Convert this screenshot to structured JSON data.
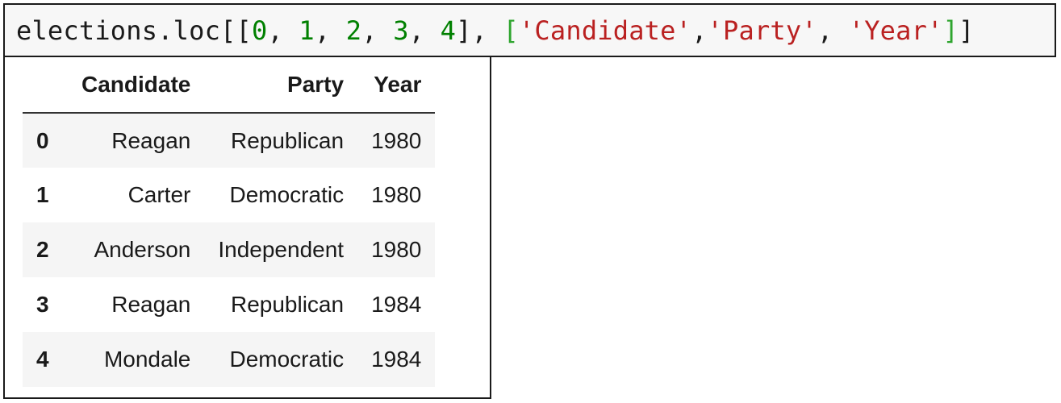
{
  "code_cell": {
    "tokens": [
      {
        "text": "elections.loc[[",
        "type": "default"
      },
      {
        "text": "0",
        "type": "number"
      },
      {
        "text": ", ",
        "type": "default"
      },
      {
        "text": "1",
        "type": "number"
      },
      {
        "text": ", ",
        "type": "default"
      },
      {
        "text": "2",
        "type": "number"
      },
      {
        "text": ", ",
        "type": "default"
      },
      {
        "text": "3",
        "type": "number"
      },
      {
        "text": ", ",
        "type": "default"
      },
      {
        "text": "4",
        "type": "number"
      },
      {
        "text": "], ",
        "type": "default"
      },
      {
        "text": "[",
        "type": "bracket-green"
      },
      {
        "text": "'Candidate'",
        "type": "string"
      },
      {
        "text": ",",
        "type": "default"
      },
      {
        "text": "'Party'",
        "type": "string"
      },
      {
        "text": ", ",
        "type": "default"
      },
      {
        "text": "'Year'",
        "type": "string"
      },
      {
        "text": "]",
        "type": "bracket-green"
      },
      {
        "text": "]",
        "type": "default"
      }
    ]
  },
  "table": {
    "index_header": "",
    "columns": [
      "Candidate",
      "Party",
      "Year"
    ],
    "rows": [
      {
        "index": "0",
        "cells": [
          "Reagan",
          "Republican",
          "1980"
        ]
      },
      {
        "index": "1",
        "cells": [
          "Carter",
          "Democratic",
          "1980"
        ]
      },
      {
        "index": "2",
        "cells": [
          "Anderson",
          "Independent",
          "1980"
        ]
      },
      {
        "index": "3",
        "cells": [
          "Reagan",
          "Republican",
          "1984"
        ]
      },
      {
        "index": "4",
        "cells": [
          "Mondale",
          "Democratic",
          "1984"
        ]
      }
    ]
  },
  "colors": {
    "default_text": "#1a1a1a",
    "number": "#008000",
    "string": "#ba2121",
    "bracket_green": "#2fa52f",
    "code_background": "#f7f7f7",
    "zebra_row": "#f5f5f5"
  }
}
